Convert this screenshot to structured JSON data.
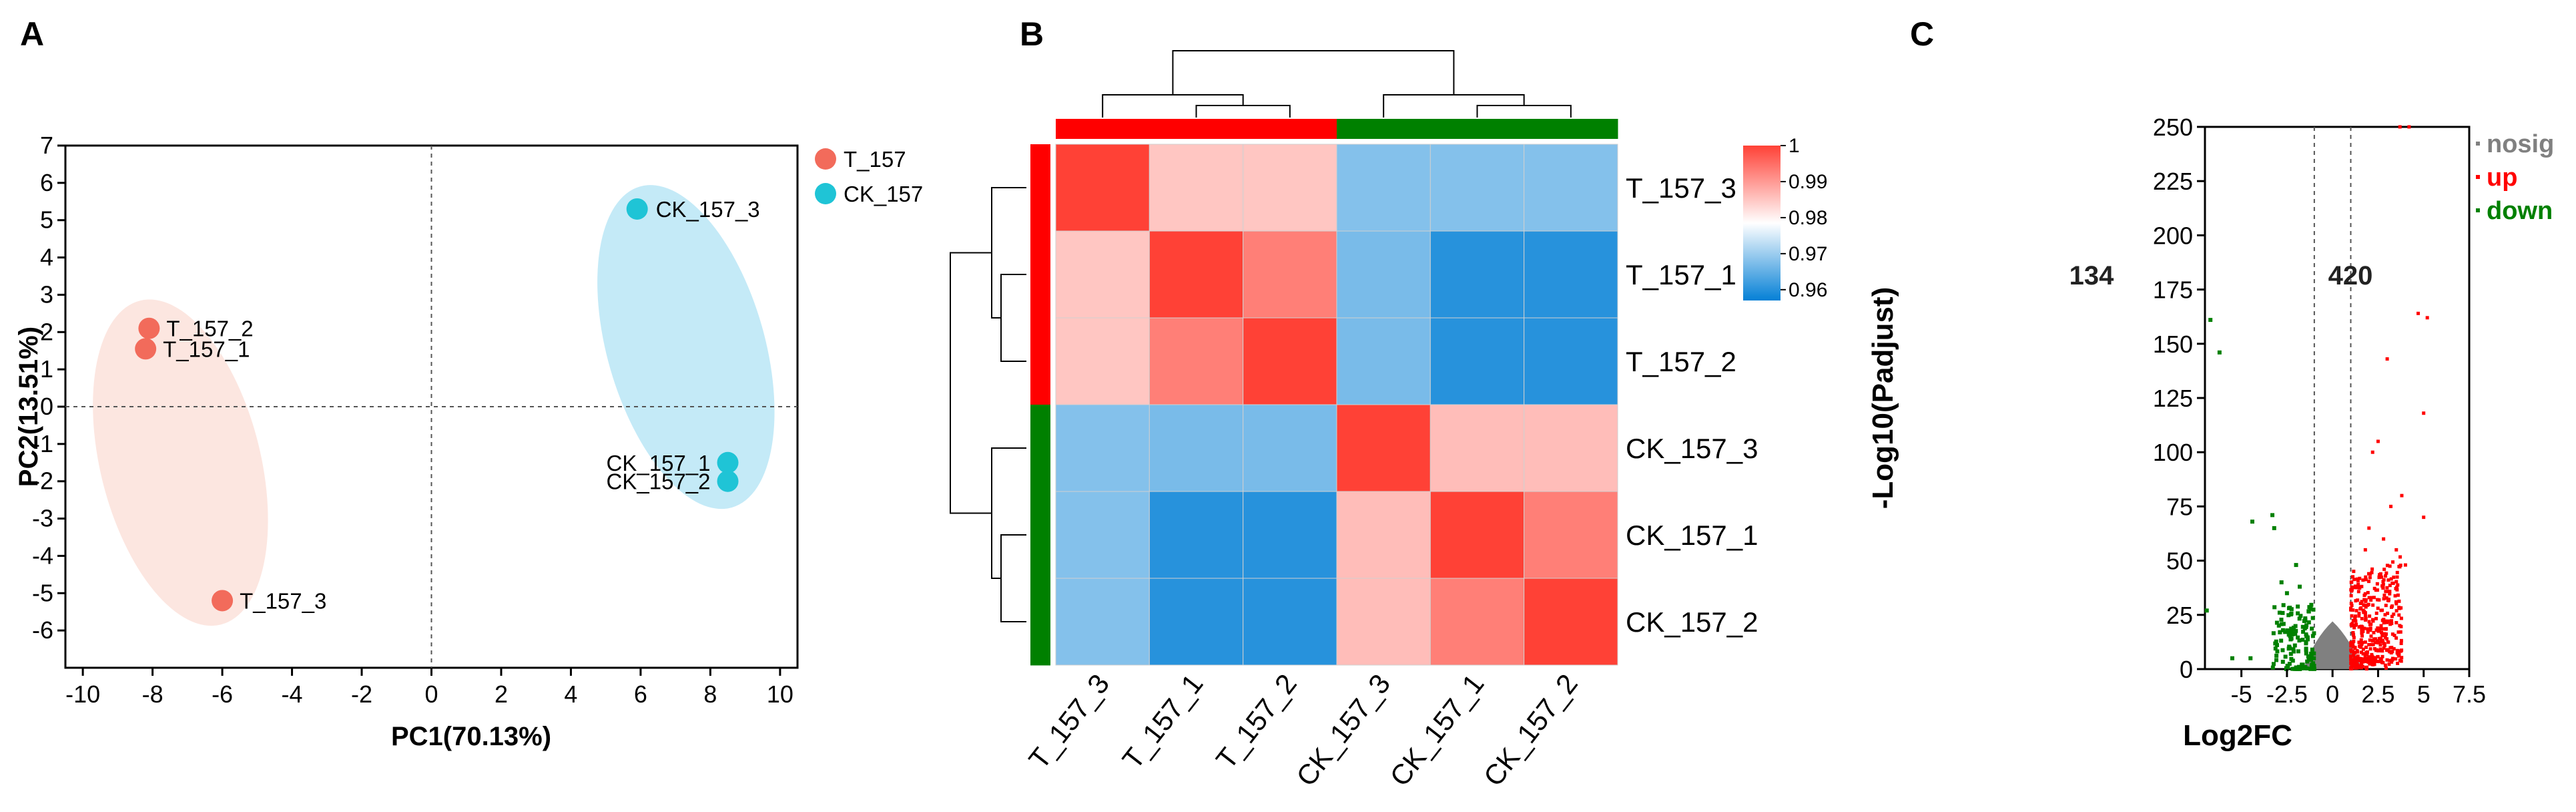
{
  "panels": {
    "a": "A",
    "b": "B",
    "c": "C"
  },
  "colors": {
    "t": "#F26B5B",
    "ck": "#1FC4D6",
    "t_ellipse": "#FCE6E0",
    "ck_ellipse": "#C4EAF7",
    "red": "#FF0000",
    "green": "#008000",
    "grey": "#808080",
    "hm_low": "#0480D6",
    "hm_mid": "#FFFFFF",
    "hm_high": "#FF4136"
  },
  "chart_data": [
    {
      "type": "scatter",
      "xlabel": "PC1(70.13%)",
      "ylabel": "PC2(13.51%)",
      "xlim": [
        -10.5,
        10.5
      ],
      "ylim": [
        -7,
        7
      ],
      "xticks": [
        -10,
        -8,
        -6,
        -4,
        -2,
        0,
        2,
        4,
        6,
        8,
        10
      ],
      "yticks": [
        -6,
        -5,
        -4,
        -3,
        -2,
        -1,
        0,
        1,
        2,
        3,
        4,
        5,
        6,
        7
      ],
      "legend_position": "right",
      "series": [
        {
          "name": "T_157",
          "points": [
            {
              "label": "T_157_2",
              "x": -8.1,
              "y": 2.1
            },
            {
              "label": "T_157_1",
              "x": -8.2,
              "y": 1.55
            },
            {
              "label": "T_157_3",
              "x": -6.0,
              "y": -5.2
            }
          ]
        },
        {
          "name": "CK_157",
          "points": [
            {
              "label": "CK_157_3",
              "x": 5.9,
              "y": 5.3
            },
            {
              "label": "CK_157_1",
              "x": 8.5,
              "y": -1.5
            },
            {
              "label": "CK_157_2",
              "x": 8.5,
              "y": -2.0
            }
          ]
        }
      ]
    },
    {
      "type": "heatmap",
      "rows": [
        "T_157_3",
        "T_157_1",
        "T_157_2",
        "CK_157_3",
        "CK_157_1",
        "CK_157_2"
      ],
      "cols": [
        "T_157_3",
        "T_157_1",
        "T_157_2",
        "CK_157_3",
        "CK_157_1",
        "CK_157_2"
      ],
      "values": [
        [
          1.0,
          0.985,
          0.985,
          0.968,
          0.968,
          0.968
        ],
        [
          0.985,
          1.0,
          0.993,
          0.967,
          0.96,
          0.96
        ],
        [
          0.985,
          0.993,
          1.0,
          0.967,
          0.96,
          0.96
        ],
        [
          0.968,
          0.967,
          0.967,
          1.0,
          0.986,
          0.986
        ],
        [
          0.968,
          0.96,
          0.96,
          0.986,
          1.0,
          0.993
        ],
        [
          0.968,
          0.96,
          0.96,
          0.986,
          0.993,
          1.0
        ]
      ],
      "colorbar": {
        "min": 0.957,
        "max": 1.0,
        "ticks": [
          1,
          0.99,
          0.98,
          0.97,
          0.96
        ],
        "tick_labels": [
          "1",
          "0.99",
          "0.98",
          "0.97",
          "0.96"
        ]
      },
      "col_groups": [
        "T",
        "T",
        "T",
        "CK",
        "CK",
        "CK"
      ],
      "row_groups": [
        "T",
        "T",
        "T",
        "CK",
        "CK",
        "CK"
      ]
    },
    {
      "type": "scatter",
      "subtype": "volcano",
      "xlabel": "Log2FC",
      "ylabel": "-Log10(Padjust)",
      "xlim": [
        -7,
        7.5
      ],
      "ylim": [
        0,
        250
      ],
      "xticks": [
        -5,
        -2.5,
        0,
        2.5,
        5,
        7.5
      ],
      "xtick_labels": [
        "-5",
        "-2.5",
        "0",
        "2.5",
        "5",
        "7.5"
      ],
      "yticks": [
        0,
        25,
        50,
        75,
        100,
        125,
        150,
        175,
        200,
        225,
        250
      ],
      "thresholds": [
        -1,
        1
      ],
      "down_count": "134",
      "up_count": "420",
      "legend": [
        {
          "name": "nosig",
          "color": "#808080"
        },
        {
          "name": "up",
          "color": "#FF0000"
        },
        {
          "name": "down",
          "color": "#008000"
        }
      ],
      "legend_position": "right",
      "points_up": [
        [
          4.2,
          250
        ],
        [
          3.7,
          250
        ],
        [
          4.7,
          164
        ],
        [
          5.2,
          162
        ],
        [
          5.0,
          118
        ],
        [
          3.0,
          143
        ],
        [
          5.0,
          70
        ],
        [
          2.5,
          105
        ],
        [
          2.2,
          100
        ],
        [
          3.8,
          80
        ],
        [
          3.2,
          75
        ],
        [
          2.8,
          60
        ],
        [
          3.5,
          55
        ],
        [
          4.0,
          48
        ],
        [
          2.0,
          65
        ],
        [
          1.8,
          55
        ]
      ],
      "points_down": [
        [
          -6.7,
          161
        ],
        [
          -6.2,
          146
        ],
        [
          -4.4,
          68
        ],
        [
          -3.3,
          71
        ],
        [
          -3.2,
          65
        ],
        [
          -6.9,
          27
        ],
        [
          -2.8,
          40
        ],
        [
          -2.5,
          35
        ],
        [
          -2.0,
          48
        ],
        [
          -1.8,
          38
        ],
        [
          -4.5,
          5
        ],
        [
          -5.5,
          5
        ]
      ]
    }
  ]
}
